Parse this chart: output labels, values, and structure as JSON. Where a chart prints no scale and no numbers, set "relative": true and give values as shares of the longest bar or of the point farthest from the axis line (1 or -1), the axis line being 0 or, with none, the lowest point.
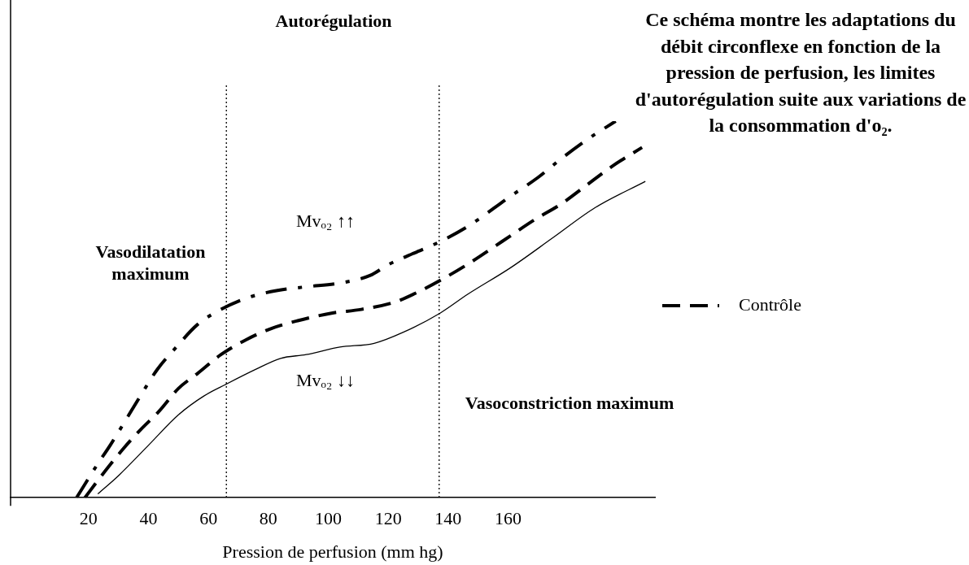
{
  "chart_data": {
    "type": "line",
    "relative": true,
    "xlabel": "Pression de perfusion (mm hg)",
    "xlim": [
      -6,
      209
    ],
    "xticks": [
      20,
      40,
      60,
      80,
      100,
      120,
      140,
      160
    ],
    "grid": false,
    "legend": "right",
    "marker": "none",
    "series": [
      {
        "line_style": "dashdot",
        "color": "#000000",
        "x": [
          16.0,
          23.1,
          27.3,
          37.3,
          42.9,
          49.3,
          56.4,
          64.2,
          72.7,
          82.7,
          92.6,
          103.9,
          113.9,
          120.3,
          128.8,
          137.3,
          146.5,
          160.7,
          169.9,
          177.7,
          186.2,
          195.9
        ],
        "values": [
          0,
          0.09,
          0.14,
          0.27,
          0.34,
          0.4,
          0.46,
          0.5,
          0.53,
          0.55,
          0.56,
          0.57,
          0.59,
          0.62,
          0.65,
          0.68,
          0.72,
          0.8,
          0.85,
          0.9,
          0.95,
          1
        ]
      },
      {
        "name": "Contrôle",
        "line_style": "dashed",
        "color": "#000000",
        "x": [
          18.8,
          24.5,
          31.6,
          37.3,
          43.6,
          50.0,
          56.4,
          64.2,
          72.7,
          81.2,
          89.8,
          101.1,
          111.0,
          122.4,
          130.9,
          138.0,
          146.5,
          157.9,
          169.2,
          177.7,
          186.2,
          194.7,
          204.7
        ],
        "values": [
          0,
          0.06,
          0.13,
          0.18,
          0.23,
          0.29,
          0.33,
          0.38,
          0.42,
          0.45,
          0.47,
          0.49,
          0.5,
          0.52,
          0.55,
          0.58,
          0.62,
          0.68,
          0.74,
          0.78,
          0.83,
          0.88,
          0.93
        ]
      },
      {
        "line_style": "solid",
        "color": "#000000",
        "x": [
          23.1,
          30.2,
          40.1,
          50.0,
          58.5,
          65.6,
          75.6,
          84.1,
          92.6,
          103.9,
          115.3,
          125.2,
          137.3,
          146.5,
          160.7,
          174.9,
          189.0,
          205.8
        ],
        "values": [
          0.01,
          0.06,
          0.14,
          0.22,
          0.27,
          0.3,
          0.34,
          0.37,
          0.38,
          0.4,
          0.41,
          0.44,
          0.49,
          0.54,
          0.61,
          0.69,
          0.77,
          0.84
        ]
      }
    ],
    "ref_lines": [
      {
        "axis": "x",
        "value": 66,
        "line_style": "dotted",
        "color": "#000000"
      },
      {
        "axis": "x",
        "value": 137,
        "line_style": "dotted",
        "color": "#000000"
      }
    ],
    "annotations": [
      "Autorégulation",
      "Vasodilatation maximum",
      "Vasoconstriction maximum",
      "Ce schéma montre les adaptations du débit circonflexe en fonction de la pression de perfusion, les limites d'autorégulation suite aux variations de la consommation d'o₂.",
      "Mvₒ₂ ↑↑",
      "Mvₒ₂ ↓↓"
    ]
  }
}
